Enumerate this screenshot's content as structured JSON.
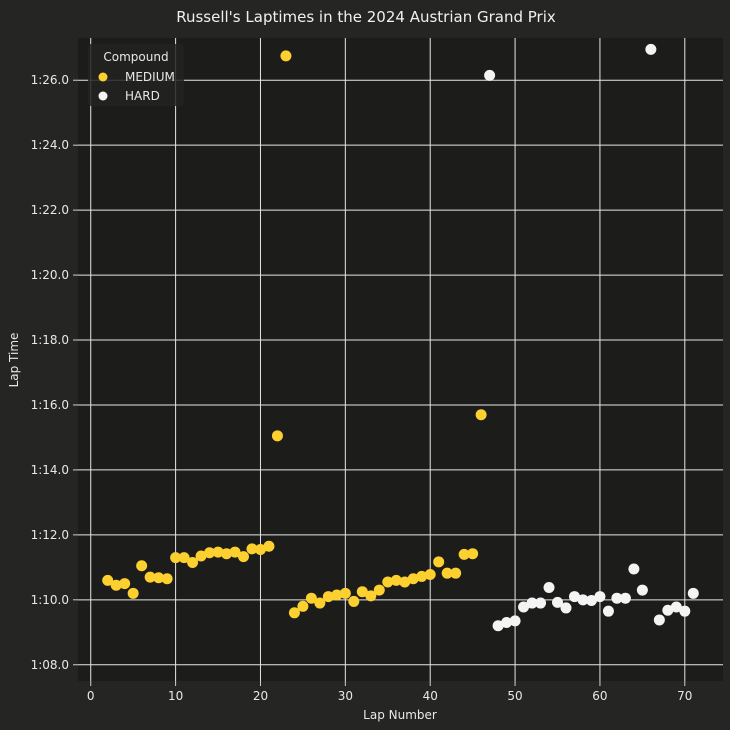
{
  "chart_data": {
    "type": "scatter",
    "title": "Russell's Laptimes in the 2024 Austrian Grand Prix",
    "xlabel": "Lap Number",
    "ylabel": "Lap Time",
    "xlim": [
      -1.5,
      74.5
    ],
    "ylim": [
      67.5,
      87.3
    ],
    "x_ticks": [
      0,
      10,
      20,
      30,
      40,
      50,
      60,
      70
    ],
    "y_ticks": [
      68,
      70,
      72,
      74,
      76,
      78,
      80,
      82,
      84,
      86
    ],
    "y_tick_labels": [
      "1:08.0",
      "1:10.0",
      "1:12.0",
      "1:14.0",
      "1:16.0",
      "1:18.0",
      "1:20.0",
      "1:22.0",
      "1:24.0",
      "1:26.0"
    ],
    "grid": true,
    "legend": {
      "title": "Compound",
      "placement": "top-left"
    },
    "series": [
      {
        "name": "MEDIUM",
        "color": "#fcd02f",
        "points": [
          [
            2,
            70.6
          ],
          [
            3,
            70.45
          ],
          [
            4,
            70.5
          ],
          [
            5,
            70.2
          ],
          [
            6,
            71.05
          ],
          [
            7,
            70.7
          ],
          [
            8,
            70.68
          ],
          [
            9,
            70.65
          ],
          [
            10,
            71.3
          ],
          [
            11,
            71.3
          ],
          [
            12,
            71.15
          ],
          [
            13,
            71.35
          ],
          [
            14,
            71.45
          ],
          [
            15,
            71.47
          ],
          [
            16,
            71.42
          ],
          [
            17,
            71.47
          ],
          [
            18,
            71.33
          ],
          [
            19,
            71.57
          ],
          [
            20,
            71.55
          ],
          [
            21,
            71.65
          ],
          [
            22,
            75.05
          ],
          [
            23,
            86.75
          ],
          [
            24,
            69.6
          ],
          [
            25,
            69.8
          ],
          [
            26,
            70.05
          ],
          [
            27,
            69.9
          ],
          [
            28,
            70.1
          ],
          [
            29,
            70.15
          ],
          [
            30,
            70.2
          ],
          [
            31,
            69.95
          ],
          [
            32,
            70.25
          ],
          [
            33,
            70.12
          ],
          [
            34,
            70.3
          ],
          [
            35,
            70.55
          ],
          [
            36,
            70.6
          ],
          [
            37,
            70.55
          ],
          [
            38,
            70.65
          ],
          [
            39,
            70.72
          ],
          [
            40,
            70.78
          ],
          [
            41,
            71.17
          ],
          [
            42,
            70.82
          ],
          [
            43,
            70.82
          ],
          [
            44,
            71.4
          ],
          [
            45,
            71.42
          ],
          [
            46,
            75.7
          ]
        ]
      },
      {
        "name": "HARD",
        "color": "#f4f4f4",
        "points": [
          [
            47,
            86.15
          ],
          [
            48,
            69.2
          ],
          [
            49,
            69.3
          ],
          [
            50,
            69.35
          ],
          [
            51,
            69.78
          ],
          [
            52,
            69.9
          ],
          [
            53,
            69.9
          ],
          [
            54,
            70.38
          ],
          [
            55,
            69.92
          ],
          [
            56,
            69.75
          ],
          [
            57,
            70.1
          ],
          [
            58,
            70.0
          ],
          [
            59,
            69.98
          ],
          [
            60,
            70.1
          ],
          [
            61,
            69.65
          ],
          [
            62,
            70.05
          ],
          [
            63,
            70.05
          ],
          [
            64,
            70.95
          ],
          [
            65,
            70.3
          ],
          [
            66,
            86.95
          ],
          [
            67,
            69.38
          ],
          [
            68,
            69.68
          ],
          [
            69,
            69.78
          ],
          [
            70,
            69.65
          ],
          [
            71,
            70.2
          ]
        ]
      }
    ]
  }
}
